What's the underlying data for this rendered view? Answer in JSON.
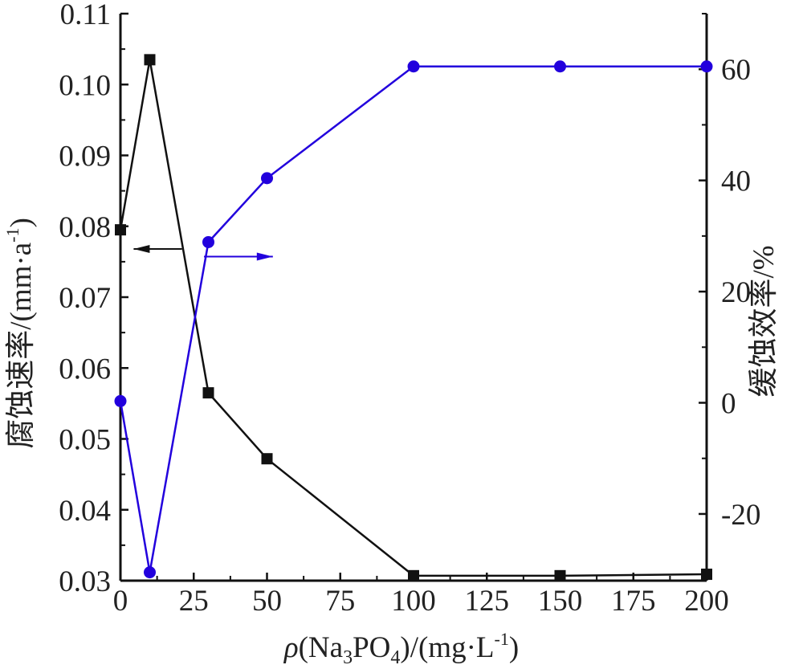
{
  "chart_data": {
    "type": "line",
    "x": [
      0,
      10,
      30,
      50,
      100,
      150,
      200
    ],
    "xlim": [
      0,
      200
    ],
    "x_ticks": [
      "0",
      "25",
      "50",
      "75",
      "100",
      "125",
      "150",
      "175",
      "200"
    ],
    "xlabel": "ρ(Na3PO4)/(mg·L-1)",
    "y_left": {
      "label": "腐蚀速率/(mm·a-1)",
      "ylim": [
        0.03,
        0.11
      ],
      "ticks": [
        "0.03",
        "0.04",
        "0.05",
        "0.06",
        "0.07",
        "0.08",
        "0.09",
        "0.10",
        "0.11"
      ]
    },
    "y_right": {
      "label": "缓蚀效率/%",
      "ylim": [
        -32,
        70
      ],
      "ticks": [
        "-20",
        "0",
        "20",
        "40",
        "60"
      ]
    },
    "series": [
      {
        "axis": "left",
        "marker": "square",
        "color": "#111111",
        "values": [
          0.0795,
          0.1035,
          0.0565,
          0.0472,
          0.0307,
          0.0307,
          0.0309
        ]
      },
      {
        "axis": "right",
        "marker": "circle",
        "color": "#2200dd",
        "values": [
          0.3,
          -30.5,
          28.9,
          40.4,
          60.5,
          60.5,
          60.5
        ]
      }
    ],
    "annotations": [
      {
        "type": "arrow",
        "direction": "left",
        "points_to": "left-axis",
        "color": "#111111"
      },
      {
        "type": "arrow",
        "direction": "right",
        "points_to": "right-axis",
        "color": "#2200dd"
      }
    ],
    "grid": false,
    "legend": "none"
  },
  "text": {
    "xlabel_rho": "ρ",
    "xlabel_a": "(Na",
    "xlabel_sub3": "3",
    "xlabel_b": "PO",
    "xlabel_sub4": "4",
    "xlabel_c": ")/(mg·L",
    "xlabel_sup": "-1",
    "xlabel_d": ")",
    "ylabel_left_a": "腐蚀速率/(mm·a",
    "ylabel_left_sup": "-1",
    "ylabel_left_b": ")",
    "ylabel_right": "缓蚀效率/%"
  }
}
